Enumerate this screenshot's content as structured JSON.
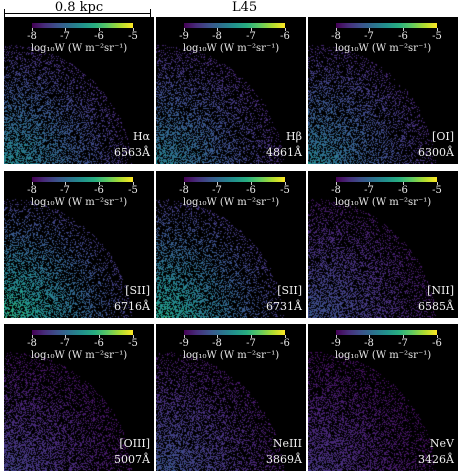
{
  "header": {
    "scale_label": "0.8 kpc",
    "title": "L45"
  },
  "colorbar_label": "log₁₀W (W m⁻²sr⁻¹)",
  "colormap": [
    "#440154",
    "#472d7b",
    "#3b528b",
    "#2c728e",
    "#21918c",
    "#28ae80",
    "#5ec962",
    "#addc30",
    "#fde725"
  ],
  "panels": [
    {
      "line": "Hα",
      "wavelength": "6563Å",
      "ticks": [
        "-8",
        "-7",
        "-6",
        "-5"
      ],
      "range": [
        -8.5,
        -4.8
      ],
      "intensity": 0.55
    },
    {
      "line": "Hβ",
      "wavelength": "4861Å",
      "ticks": [
        "-9",
        "-8",
        "-7",
        "-6"
      ],
      "range": [
        -9.5,
        -5.8
      ],
      "intensity": 0.5
    },
    {
      "line": "[OI]",
      "wavelength": "6300Å",
      "ticks": [
        "-8",
        "-7",
        "-6",
        "-5"
      ],
      "range": [
        -8.5,
        -4.8
      ],
      "intensity": 0.5
    },
    {
      "line": "[SII]",
      "wavelength": "6716Å",
      "ticks": [
        "-8",
        "-7",
        "-6",
        "-5"
      ],
      "range": [
        -8.5,
        -4.8
      ],
      "intensity": 0.72
    },
    {
      "line": "[SII]",
      "wavelength": "6731Å",
      "ticks": [
        "-8",
        "-7",
        "-6",
        "-5"
      ],
      "range": [
        -8.5,
        -4.8
      ],
      "intensity": 0.68
    },
    {
      "line": "[NII]",
      "wavelength": "6585Å",
      "ticks": [
        "-8",
        "-7",
        "-6",
        "-5"
      ],
      "range": [
        -8.5,
        -4.8
      ],
      "intensity": 0.3
    },
    {
      "line": "[OIII]",
      "wavelength": "5007Å",
      "ticks": [
        "-8",
        "-7",
        "-6",
        "-5"
      ],
      "range": [
        -8.5,
        -4.8
      ],
      "intensity": 0.22
    },
    {
      "line": "NeIII",
      "wavelength": "3869Å",
      "ticks": [
        "-9",
        "-8",
        "-7",
        "-6"
      ],
      "range": [
        -9.5,
        -5.8
      ],
      "intensity": 0.3
    },
    {
      "line": "NeV",
      "wavelength": "3426Å",
      "ticks": [
        "-9",
        "-8",
        "-7",
        "-6"
      ],
      "range": [
        -9.5,
        -5.8
      ],
      "intensity": 0.18
    }
  ]
}
